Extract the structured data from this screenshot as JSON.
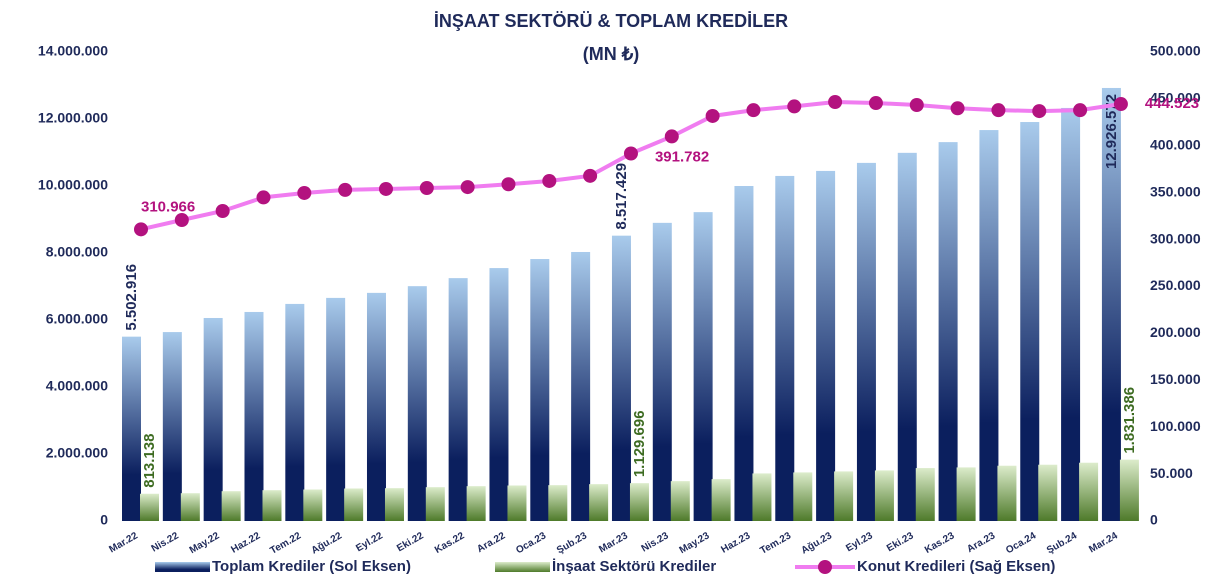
{
  "chart_data": {
    "type": "bar-line",
    "title": "İNŞAAT SEKTÖRÜ & TOPLAM KREDİLER",
    "subtitle": "(MN ₺)",
    "categories": [
      "Mar.22",
      "Nis.22",
      "May.22",
      "Haz.22",
      "Tem.22",
      "Ağu.22",
      "Eyl.22",
      "Eki.22",
      "Kas.22",
      "Ara.22",
      "Oca.23",
      "Şub.23",
      "Mar.23",
      "Nis.23",
      "May.23",
      "Haz.23",
      "Tem.23",
      "Ağu.23",
      "Eyl.23",
      "Eki.23",
      "Kas.23",
      "Ara.23",
      "Oca.24",
      "Şub.24",
      "Mar.24"
    ],
    "series": [
      {
        "name": "Toplam Krediler (Sol Eksen)",
        "type": "bar",
        "color": "#0b1f5e",
        "color_top": "#a9cbec",
        "values": [
          5502916,
          5640000,
          6060000,
          6240000,
          6480000,
          6660000,
          6810000,
          7010000,
          7250000,
          7550000,
          7820000,
          8030000,
          8517429,
          8900000,
          9220000,
          10000000,
          10300000,
          10450000,
          10690000,
          10990000,
          11310000,
          11670000,
          11910000,
          12330000,
          12926572
        ],
        "value_labels": [
          "5.502.916",
          null,
          null,
          null,
          null,
          null,
          null,
          null,
          null,
          null,
          null,
          null,
          "8.517.429",
          null,
          null,
          null,
          null,
          null,
          null,
          null,
          null,
          null,
          null,
          null,
          "12.926.572"
        ]
      },
      {
        "name": "İnşaat Sektörü Krediler",
        "type": "bar",
        "color": "#4e7a2a",
        "color_top": "#dceccb",
        "values": [
          813138,
          830000,
          890000,
          920000,
          940000,
          970000,
          980000,
          1010000,
          1040000,
          1060000,
          1070000,
          1100000,
          1129696,
          1190000,
          1250000,
          1420000,
          1450000,
          1480000,
          1510000,
          1580000,
          1600000,
          1650000,
          1680000,
          1740000,
          1831386
        ],
        "value_labels": [
          "813.138",
          null,
          null,
          null,
          null,
          null,
          null,
          null,
          null,
          null,
          null,
          null,
          "1.129.696",
          null,
          null,
          null,
          null,
          null,
          null,
          null,
          null,
          null,
          null,
          null,
          "1.831.386"
        ]
      },
      {
        "name": "Konut Kredileri (Sağ Eksen)",
        "type": "line",
        "axis": "y2",
        "color": "#f07cf0",
        "marker_color": "#b3127f",
        "values": [
          310966,
          320900,
          330500,
          345000,
          349700,
          353000,
          354000,
          355000,
          356000,
          359000,
          362500,
          368000,
          391782,
          410000,
          431800,
          438000,
          442000,
          446700,
          445600,
          443500,
          440000,
          438000,
          437000,
          438000,
          444523
        ],
        "value_labels": [
          "310.966",
          null,
          null,
          null,
          null,
          null,
          null,
          null,
          null,
          null,
          null,
          null,
          "391.782",
          null,
          null,
          null,
          null,
          null,
          null,
          null,
          null,
          null,
          null,
          null,
          "444.523"
        ]
      }
    ],
    "ylim": [
      0,
      14000000
    ],
    "yticks": [
      0,
      {
        "value": 2000000,
        "label": "2.000.000"
      },
      {
        "value": 4000000,
        "label": "4.000.000"
      },
      {
        "value": 6000000,
        "label": "6.000.000"
      },
      {
        "value": 8000000,
        "label": "8.000.000"
      },
      {
        "value": 10000000,
        "label": "10.000.000"
      },
      {
        "value": 12000000,
        "label": "12.000.000"
      },
      {
        "value": 14000000,
        "label": "14.000.000"
      }
    ],
    "y2lim": [
      0,
      500000
    ],
    "y2ticks": [
      0,
      {
        "value": 50000,
        "label": "50.000"
      },
      {
        "value": 100000,
        "label": "100.000"
      },
      {
        "value": 150000,
        "label": "150.000"
      },
      {
        "value": 200000,
        "label": "200.000"
      },
      {
        "value": 250000,
        "label": "250.000"
      },
      {
        "value": 300000,
        "label": "300.000"
      },
      {
        "value": 350000,
        "label": "350.000"
      },
      {
        "value": 400000,
        "label": "400.000"
      },
      {
        "value": 450000,
        "label": "450.000"
      },
      {
        "value": 500000,
        "label": "500.000"
      }
    ],
    "legend": "bottom",
    "grid": false
  }
}
